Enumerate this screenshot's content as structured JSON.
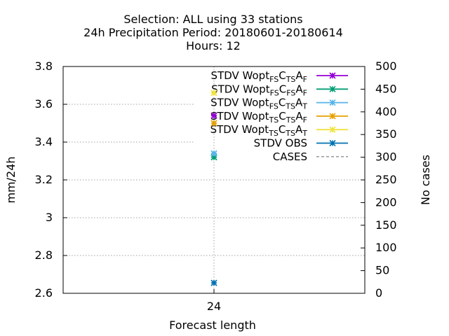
{
  "chart_data": {
    "type": "scatter",
    "title_lines": [
      "Selection: ALL using    33 stations",
      "24h Precipitation   Period: 20180601-20180614",
      "Hours:  12"
    ],
    "xlabel": "Forecast length",
    "ylabel": "mm/24h",
    "y2label": "No cases",
    "x": [
      24
    ],
    "x_ticks": [
      "24"
    ],
    "ylim": [
      2.6,
      3.8
    ],
    "y_ticks": [
      "2.6",
      "2.8",
      "3",
      "3.2",
      "3.4",
      "3.6",
      "3.8"
    ],
    "y2lim": [
      0,
      500
    ],
    "y2_ticks": [
      "0",
      "50",
      "100",
      "150",
      "200",
      "250",
      "300",
      "350",
      "400",
      "450",
      "500"
    ],
    "grid": true,
    "legend_position": "top-right",
    "series": [
      {
        "name": "STDV Wopt",
        "sub1": "FS",
        "mid": "C",
        "sub2": "TS",
        "end": "A",
        "sub3": "F",
        "color": "#9400d3",
        "values": [
          3.54
        ],
        "axis": "y"
      },
      {
        "name": "STDV Wopt",
        "sub1": "FS",
        "mid": "C",
        "sub2": "FS",
        "end": "A",
        "sub3": "F",
        "color": "#009e73",
        "values": [
          3.32
        ],
        "axis": "y"
      },
      {
        "name": "STDV Wopt",
        "sub1": "FS",
        "mid": "C",
        "sub2": "TS",
        "end": "A",
        "sub3": "T",
        "color": "#56b4e9",
        "values": [
          3.34
        ],
        "axis": "y"
      },
      {
        "name": "STDV Wopt",
        "sub1": "TS",
        "mid": "C",
        "sub2": "TS",
        "end": "A",
        "sub3": "F",
        "color": "#e69f00",
        "values": [
          3.5
        ],
        "axis": "y"
      },
      {
        "name": "STDV Wopt",
        "sub1": "TS",
        "mid": "C",
        "sub2": "TS",
        "end": "A",
        "sub3": "T",
        "color": "#f0e442",
        "values": [
          3.66
        ],
        "axis": "y"
      },
      {
        "name": "STDV OBS",
        "color": "#0072b2",
        "values": [
          2.655
        ],
        "axis": "y"
      },
      {
        "name": "CASES",
        "color": "#999999",
        "values": [
          33
        ],
        "axis": "y2",
        "dashed": true
      }
    ]
  }
}
